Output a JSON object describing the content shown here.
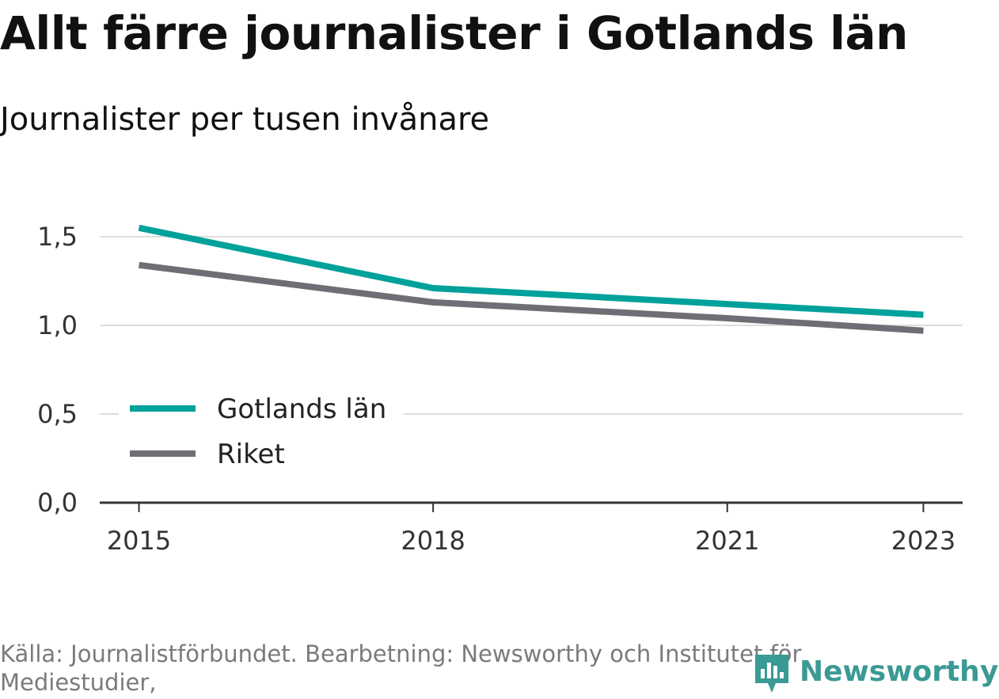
{
  "title": "Allt färre journalister i Gotlands län",
  "subtitle": "Journalister per tusen invånare",
  "source": "Källa: Journalistförbundet. Bearbetning: Newsworthy och Institutet för Mediestudier,",
  "logo": {
    "text": "Newsworthy",
    "icon": "bar-chart-logo-icon",
    "color": "#3a9a94"
  },
  "chart_data": {
    "type": "line",
    "x": [
      2015,
      2018,
      2021,
      2023
    ],
    "x_tick_labels": [
      "2015",
      "2018",
      "2021",
      "2023"
    ],
    "y_tick_values": [
      0,
      0.5,
      1.0,
      1.5
    ],
    "y_tick_labels": [
      "0,0",
      "0,5",
      "1,0",
      "1,5"
    ],
    "ylim": [
      0,
      1.5
    ],
    "xlim": [
      2014.6,
      2023.4
    ],
    "grid": true,
    "legend_position": "lower-left",
    "series": [
      {
        "name": "Gotlands län",
        "color": "#00a19a",
        "points": [
          [
            2015,
            1.55
          ],
          [
            2018,
            1.21
          ],
          [
            2021,
            1.12
          ],
          [
            2023,
            1.06
          ]
        ]
      },
      {
        "name": "Riket",
        "color": "#6e6e74",
        "points": [
          [
            2015,
            1.34
          ],
          [
            2018,
            1.13
          ],
          [
            2021,
            1.04
          ],
          [
            2023,
            0.97
          ]
        ]
      }
    ]
  }
}
